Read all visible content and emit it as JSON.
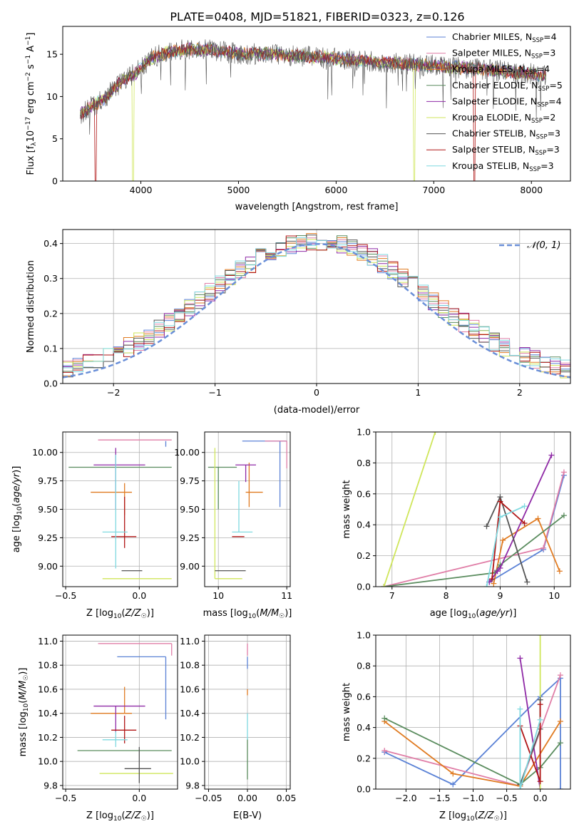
{
  "figure": {
    "title": "PLATE=0408, MJD=51821, FIBERID=0323, z=0.126"
  },
  "colors": {
    "Chabrier MILES": "#5b82d6",
    "Salpeter MILES": "#e07ea7",
    "Kroupa MILES": "#e07b22",
    "Chabrier ELODIE": "#5a8c5e",
    "Salpeter ELODIE": "#8f2aa6",
    "Kroupa ELODIE": "#cfe65a",
    "Chabrier STELIB": "#555555",
    "Salpeter STELIB": "#b01515",
    "Kroupa STELIB": "#7fd9e0"
  },
  "chart_data": [
    {
      "type": "line",
      "title": "PLATE=0408, MJD=51821, FIBERID=0323, z=0.126",
      "xlabel": "wavelength [Angstrom, rest frame]",
      "ylabel": "Flux [f_λ 10^-17 erg cm^-2 s^-1 A^-1]",
      "xlim": [
        3200,
        8400
      ],
      "ylim": [
        0,
        18.3
      ],
      "xticks": [
        4000,
        5000,
        6000,
        7000,
        8000
      ],
      "yticks": [
        0,
        5,
        10,
        15
      ],
      "legend_position": "upper right",
      "legend": [
        {
          "series": "Chabrier MILES",
          "text": "Chabrier MILES, N",
          "sub": "SSP",
          "suffix": "=4"
        },
        {
          "series": "Salpeter MILES",
          "text": "Salpeter MILES, N",
          "sub": "SSP",
          "suffix": "=3"
        },
        {
          "series": "Kroupa MILES",
          "text": "Kroupa MILES, N",
          "sub": "SSP",
          "suffix": "=4"
        },
        {
          "series": "Chabrier ELODIE",
          "text": "Chabrier ELODIE, N",
          "sub": "SSP",
          "suffix": "=5"
        },
        {
          "series": "Salpeter ELODIE",
          "text": "Salpeter ELODIE, N",
          "sub": "SSP",
          "suffix": "=4"
        },
        {
          "series": "Kroupa ELODIE",
          "text": "Kroupa ELODIE, N",
          "sub": "SSP",
          "suffix": "=2"
        },
        {
          "series": "Chabrier STELIB",
          "text": "Chabrier STELIB, N",
          "sub": "SSP",
          "suffix": "=3"
        },
        {
          "series": "Salpeter STELIB",
          "text": "Salpeter STELIB, N",
          "sub": "SSP",
          "suffix": "=3"
        },
        {
          "series": "Kroupa STELIB",
          "text": "Kroupa STELIB, N",
          "sub": "SSP",
          "suffix": "=3"
        }
      ],
      "spectrum_anchors": {
        "x": [
          3380,
          3500,
          3650,
          3800,
          3950,
          4100,
          4300,
          4500,
          4800,
          5000,
          5300,
          5600,
          5900,
          6200,
          6500,
          6800,
          7100,
          7400,
          7700,
          8000,
          8150
        ],
        "y": [
          8.0,
          8.8,
          10.0,
          11.8,
          12.8,
          14.5,
          15.3,
          15.6,
          15.4,
          15.0,
          15.1,
          14.8,
          14.6,
          14.3,
          14.0,
          13.8,
          13.6,
          13.3,
          13.0,
          12.7,
          12.4
        ]
      },
      "dropouts": [
        {
          "series": "Salpeter STELIB",
          "x": [
            3525,
            3545
          ]
        },
        {
          "series": "Kroupa ELODIE",
          "x": [
            3915,
            3930
          ]
        },
        {
          "series": "Kroupa ELODIE",
          "x": [
            6790,
            6810
          ]
        },
        {
          "series": "Salpeter STELIB",
          "x": [
            7410,
            7425
          ]
        }
      ]
    },
    {
      "type": "bar",
      "subtype": "step histogram",
      "xlabel": "(data-model)/error",
      "ylabel": "Normed distribution",
      "xlim": [
        -2.5,
        2.5
      ],
      "ylim": [
        0,
        0.44
      ],
      "xticks": [
        -2,
        -1,
        0,
        1,
        2
      ],
      "yticks": [
        0.0,
        0.1,
        0.2,
        0.3,
        0.4
      ],
      "grid": true,
      "legend_position": "upper right",
      "legend": [
        {
          "text": "𝒩(0, 1)"
        }
      ],
      "reference_curve": {
        "name": "𝒩(0, 1)",
        "mean": 0,
        "sigma": 1,
        "color": "#6a8fd8"
      },
      "bin_width": 0.1
    },
    {
      "type": "scatter",
      "subtype": "error crosses",
      "xlabel": "Z [log10(Z/Z☉)]",
      "ylabel": "age [log10(age/yr)]",
      "xlim": [
        -0.52,
        0.26
      ],
      "ylim": [
        8.82,
        10.18
      ],
      "xticks": [
        -0.5,
        0.0
      ],
      "yticks": [
        9.0,
        9.25,
        9.5,
        9.75,
        10.0
      ],
      "grid": true,
      "points": [
        {
          "series": "Chabrier MILES",
          "x": 0.18,
          "y": 10.1,
          "xerr": [
            0.0,
            0.0
          ],
          "yerr": [
            0.05,
            0.0
          ]
        },
        {
          "series": "Salpeter MILES",
          "x": 0.22,
          "y": 10.11,
          "xerr": [
            0.5,
            0.0
          ],
          "yerr": [
            0.0,
            0.0
          ]
        },
        {
          "series": "Kroupa MILES",
          "x": -0.1,
          "y": 9.65,
          "xerr": [
            0.23,
            0.05
          ],
          "yerr": [
            0.2,
            0.08
          ]
        },
        {
          "series": "Chabrier ELODIE",
          "x": -0.1,
          "y": 9.87,
          "xerr": [
            0.38,
            0.32
          ],
          "yerr": [
            0.0,
            0.0
          ]
        },
        {
          "series": "Salpeter ELODIE",
          "x": -0.16,
          "y": 9.89,
          "xerr": [
            0.15,
            0.2
          ],
          "yerr": [
            0.39,
            0.15
          ]
        },
        {
          "series": "Kroupa ELODIE",
          "x": 0.0,
          "y": 8.89,
          "xerr": [
            0.25,
            0.22
          ],
          "yerr": [
            0.0,
            0.0
          ]
        },
        {
          "series": "Chabrier STELIB",
          "x": -0.05,
          "y": 8.96,
          "xerr": [
            0.07,
            0.07
          ],
          "yerr": [
            0.0,
            0.0
          ]
        },
        {
          "series": "Salpeter STELIB",
          "x": -0.1,
          "y": 9.26,
          "xerr": [
            0.09,
            0.08
          ],
          "yerr": [
            0.1,
            0.35
          ]
        },
        {
          "series": "Kroupa STELIB",
          "x": -0.16,
          "y": 9.3,
          "xerr": [
            0.09,
            0.08
          ],
          "yerr": [
            0.32,
            0.68
          ]
        }
      ]
    },
    {
      "type": "scatter",
      "subtype": "error crosses",
      "xlabel": "mass [log10(M/M☉)]",
      "ylabel": "",
      "xlim": [
        9.8,
        11.05
      ],
      "ylim": [
        8.82,
        10.18
      ],
      "xticks": [
        10,
        11
      ],
      "yticks": [
        9.0,
        9.25,
        9.5,
        9.75,
        10.0
      ],
      "grid": true,
      "points": [
        {
          "series": "Chabrier MILES",
          "x": 10.9,
          "y": 10.1,
          "xerr": [
            0.55,
            0.1
          ],
          "yerr": [
            0.58,
            0.0
          ]
        },
        {
          "series": "Salpeter MILES",
          "x": 11.0,
          "y": 10.1,
          "xerr": [
            0.32,
            0.0
          ],
          "yerr": [
            0.24,
            0.0
          ]
        },
        {
          "series": "Kroupa MILES",
          "x": 10.45,
          "y": 9.65,
          "xerr": [
            0.05,
            0.2
          ],
          "yerr": [
            0.13,
            0.26
          ]
        },
        {
          "series": "Chabrier ELODIE",
          "x": 10.0,
          "y": 9.87,
          "xerr": [
            0.15,
            0.27
          ],
          "yerr": [
            0.37,
            0.0
          ]
        },
        {
          "series": "Salpeter ELODIE",
          "x": 10.4,
          "y": 9.89,
          "xerr": [
            0.15,
            0.15
          ],
          "yerr": [
            0.15,
            0.0
          ]
        },
        {
          "series": "Kroupa ELODIE",
          "x": 9.95,
          "y": 8.89,
          "xerr": [
            0.0,
            0.4
          ],
          "yerr": [
            0.0,
            1.15
          ]
        },
        {
          "series": "Chabrier STELIB",
          "x": 10.1,
          "y": 8.96,
          "xerr": [
            0.15,
            0.3
          ],
          "yerr": [
            0.0,
            0.0
          ]
        },
        {
          "series": "Salpeter STELIB",
          "x": 10.28,
          "y": 9.26,
          "xerr": [
            0.08,
            0.1
          ],
          "yerr": [
            0.0,
            0.0
          ]
        },
        {
          "series": "Kroupa STELIB",
          "x": 10.3,
          "y": 9.3,
          "xerr": [
            0.1,
            0.2
          ],
          "yerr": [
            0.0,
            0.45
          ]
        }
      ]
    },
    {
      "type": "line",
      "subtype": "line with + markers",
      "xlabel": "age [log10(age/yr)]",
      "ylabel": "mass weight",
      "xlim": [
        6.7,
        10.3
      ],
      "ylim": [
        0.0,
        1.0
      ],
      "xticks": [
        7,
        8,
        9,
        10
      ],
      "yticks": [
        0.0,
        0.2,
        0.4,
        0.6,
        0.8,
        1.0
      ],
      "grid": true,
      "series": [
        {
          "name": "Chabrier MILES",
          "x": [
            8.8,
            9.8,
            10.18
          ],
          "y": [
            0.03,
            0.24,
            0.72
          ]
        },
        {
          "name": "Salpeter MILES",
          "x": [
            6.85,
            9.8,
            10.18
          ],
          "y": [
            0.0,
            0.25,
            0.74
          ]
        },
        {
          "name": "Kroupa MILES",
          "x": [
            8.88,
            9.05,
            9.7,
            10.1
          ],
          "y": [
            0.02,
            0.3,
            0.44,
            0.1
          ]
        },
        {
          "name": "Chabrier ELODIE",
          "x": [
            6.85,
            8.9,
            9.0,
            10.18
          ],
          "y": [
            0.0,
            0.09,
            0.14,
            0.46
          ]
        },
        {
          "name": "Salpeter ELODIE",
          "x": [
            8.8,
            8.95,
            9.0,
            9.95
          ],
          "y": [
            0.03,
            0.1,
            0.12,
            0.85
          ]
        },
        {
          "name": "Kroupa ELODIE",
          "x": [
            6.85,
            7.8
          ],
          "y": [
            0.0,
            1.0
          ]
        },
        {
          "name": "Chabrier STELIB",
          "x": [
            8.75,
            9.0,
            9.5
          ],
          "y": [
            0.39,
            0.58,
            0.03
          ]
        },
        {
          "name": "Salpeter STELIB",
          "x": [
            8.85,
            9.0,
            9.45
          ],
          "y": [
            0.05,
            0.55,
            0.41
          ]
        },
        {
          "name": "Kroupa STELIB",
          "x": [
            8.75,
            9.0,
            9.45
          ],
          "y": [
            0.0,
            0.45,
            0.52
          ]
        }
      ]
    },
    {
      "type": "scatter",
      "subtype": "error crosses",
      "xlabel": "Z [log10(Z/Z☉)]",
      "ylabel": "mass [log10(M/M☉)]",
      "xlim": [
        -0.52,
        0.26
      ],
      "ylim": [
        9.77,
        11.05
      ],
      "xticks": [
        -0.5,
        0.0
      ],
      "yticks": [
        9.8,
        10.0,
        10.2,
        10.4,
        10.6,
        10.8,
        11.0
      ],
      "grid": true,
      "points": [
        {
          "series": "Chabrier MILES",
          "x": 0.18,
          "y": 10.87,
          "xerr": [
            0.33,
            0.0
          ],
          "yerr": [
            0.52,
            0.0
          ]
        },
        {
          "series": "Salpeter MILES",
          "x": 0.22,
          "y": 10.98,
          "xerr": [
            0.5,
            0.0
          ],
          "yerr": [
            0.1,
            0.0
          ]
        },
        {
          "series": "Kroupa MILES",
          "x": -0.1,
          "y": 10.4,
          "xerr": [
            0.23,
            0.05
          ],
          "yerr": [
            0.0,
            0.22
          ]
        },
        {
          "series": "Chabrier ELODIE",
          "x": -0.1,
          "y": 10.09,
          "xerr": [
            0.32,
            0.32
          ],
          "yerr": [
            0.0,
            0.0
          ]
        },
        {
          "series": "Salpeter ELODIE",
          "x": -0.16,
          "y": 10.46,
          "xerr": [
            0.15,
            0.2
          ],
          "yerr": [
            0.22,
            0.0
          ]
        },
        {
          "series": "Kroupa ELODIE",
          "x": -0.02,
          "y": 9.9,
          "xerr": [
            0.25,
            0.25
          ],
          "yerr": [
            0.0,
            0.0
          ]
        },
        {
          "series": "Chabrier STELIB",
          "x": 0.0,
          "y": 9.94,
          "xerr": [
            0.1,
            0.08
          ],
          "yerr": [
            0.12,
            0.18
          ]
        },
        {
          "series": "Salpeter STELIB",
          "x": -0.1,
          "y": 10.26,
          "xerr": [
            0.09,
            0.08
          ],
          "yerr": [
            0.11,
            0.12
          ]
        },
        {
          "series": "Kroupa STELIB",
          "x": -0.16,
          "y": 10.18,
          "xerr": [
            0.09,
            0.08
          ],
          "yerr": [
            0.06,
            0.07
          ]
        }
      ]
    },
    {
      "type": "scatter",
      "subtype": "error bars",
      "xlabel": "E(B-V)",
      "ylabel": "",
      "xlim": [
        -0.055,
        0.055
      ],
      "ylim": [
        9.77,
        11.05
      ],
      "xticks": [
        -0.05,
        0.0,
        0.05
      ],
      "yticks": [
        9.8,
        10.0,
        10.2,
        10.4,
        10.6,
        10.8,
        11.0
      ],
      "grid": true,
      "points": [
        {
          "series": "Salpeter MILES",
          "x": 0.0,
          "y": 10.98,
          "xerr": [
            0.0,
            0.0
          ],
          "yerr": [
            0.1,
            0.0
          ]
        },
        {
          "series": "Chabrier MILES",
          "x": 0.0,
          "y": 10.87,
          "xerr": [
            0.0,
            0.0
          ],
          "yerr": [
            0.1,
            0.0
          ]
        },
        {
          "series": "Kroupa MILES",
          "x": 0.0,
          "y": 10.6,
          "xerr": [
            0.0,
            0.0
          ],
          "yerr": [
            0.05,
            0.0
          ]
        },
        {
          "series": "Chabrier ELODIE",
          "x": 0.0,
          "y": 10.09,
          "xerr": [
            0.0,
            0.0
          ],
          "yerr": [
            0.24,
            0.1
          ]
        },
        {
          "series": "Kroupa STELIB",
          "x": 0.0,
          "y": 10.3,
          "xerr": [
            0.0,
            0.0
          ],
          "yerr": [
            0.12,
            0.1
          ]
        }
      ]
    },
    {
      "type": "line",
      "subtype": "line with + markers",
      "xlabel": "Z [log10(Z/Z☉)]",
      "ylabel": "mass weight",
      "xlim": [
        -2.45,
        0.45
      ],
      "ylim": [
        0.0,
        1.0
      ],
      "xticks": [
        -2.0,
        -1.5,
        -1.0,
        -0.5,
        0.0
      ],
      "yticks": [
        0.0,
        0.2,
        0.4,
        0.6,
        0.8,
        1.0
      ],
      "grid": true,
      "series": [
        {
          "name": "Chabrier MILES",
          "x": [
            -2.32,
            -1.3,
            0.0,
            0.3,
            0.3
          ],
          "y": [
            0.24,
            0.03,
            0.6,
            0.72,
            0.0
          ]
        },
        {
          "name": "Salpeter MILES",
          "x": [
            -2.32,
            -0.3,
            0.3
          ],
          "y": [
            0.25,
            0.02,
            0.74
          ]
        },
        {
          "name": "Kroupa MILES",
          "x": [
            -2.32,
            -1.3,
            -0.3,
            0.3
          ],
          "y": [
            0.44,
            0.1,
            0.02,
            0.44
          ]
        },
        {
          "name": "Chabrier ELODIE",
          "x": [
            -2.32,
            -0.3,
            0.0,
            0.3
          ],
          "y": [
            0.46,
            0.03,
            0.14,
            0.3
          ]
        },
        {
          "name": "Salpeter ELODIE",
          "x": [
            -0.3,
            0.0
          ],
          "y": [
            0.85,
            0.0
          ]
        },
        {
          "name": "Kroupa ELODIE",
          "x": [
            0.0,
            0.0
          ],
          "y": [
            0.0,
            1.0
          ]
        },
        {
          "name": "Chabrier STELIB",
          "x": [
            -0.3,
            0.0,
            0.0
          ],
          "y": [
            0.03,
            0.39,
            0.58
          ]
        },
        {
          "name": "Salpeter STELIB",
          "x": [
            -0.3,
            0.0,
            0.0
          ],
          "y": [
            0.41,
            0.05,
            0.55
          ]
        },
        {
          "name": "Kroupa STELIB",
          "x": [
            -0.3,
            -0.3,
            0.0
          ],
          "y": [
            0.52,
            0.0,
            0.45
          ]
        }
      ]
    }
  ]
}
